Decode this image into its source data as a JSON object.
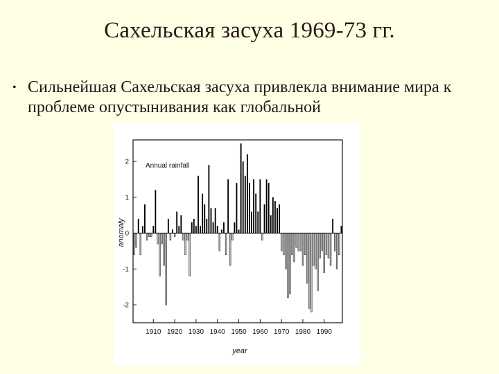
{
  "slide": {
    "title": "Сахельская засуха 1969-73 гг.",
    "bullet": "Сильнейшая Сахельская засуха привлекла внимание мира к проблеме опустынивания как глобальной"
  },
  "colors": {
    "background": "#FFFFE5",
    "positive_bar": "#000000",
    "negative_bar": "#bdbdbd"
  },
  "chart_data": {
    "type": "bar",
    "title": "",
    "annotation": "Annual rainfall",
    "xlabel": "year",
    "ylabel": "anomaly",
    "xlim": [
      1901,
      1998
    ],
    "ylim": [
      -2.5,
      2.6
    ],
    "x_ticks": [
      1910,
      1920,
      1930,
      1940,
      1950,
      1960,
      1970,
      1980,
      1990
    ],
    "y_ticks": [
      -2,
      -1,
      0,
      1,
      2
    ],
    "grid": false,
    "x": [
      1901,
      1902,
      1903,
      1904,
      1905,
      1906,
      1907,
      1908,
      1909,
      1910,
      1911,
      1912,
      1913,
      1914,
      1915,
      1916,
      1917,
      1918,
      1919,
      1920,
      1921,
      1922,
      1923,
      1924,
      1925,
      1926,
      1927,
      1928,
      1929,
      1930,
      1931,
      1932,
      1933,
      1934,
      1935,
      1936,
      1937,
      1938,
      1939,
      1940,
      1941,
      1942,
      1943,
      1944,
      1945,
      1946,
      1947,
      1948,
      1949,
      1950,
      1951,
      1952,
      1953,
      1954,
      1955,
      1956,
      1957,
      1958,
      1959,
      1960,
      1961,
      1962,
      1963,
      1964,
      1965,
      1966,
      1967,
      1968,
      1969,
      1970,
      1971,
      1972,
      1973,
      1974,
      1975,
      1976,
      1977,
      1978,
      1979,
      1980,
      1981,
      1982,
      1983,
      1984,
      1985,
      1986,
      1987,
      1988,
      1989,
      1990,
      1991,
      1992,
      1993,
      1994,
      1995,
      1996,
      1997,
      1998
    ],
    "values": [
      -0.6,
      -0.4,
      0.4,
      -0.6,
      0.2,
      0.8,
      -0.2,
      -0.1,
      -0.1,
      0.2,
      1.2,
      -0.3,
      -1.2,
      -0.3,
      -0.9,
      -2.0,
      0.4,
      -0.2,
      0.1,
      -0.1,
      0.6,
      0.2,
      0.5,
      -0.2,
      -0.6,
      -0.2,
      -1.2,
      0.3,
      0.4,
      0.2,
      1.6,
      0.2,
      1.1,
      0.8,
      0.4,
      1.9,
      0.7,
      0.3,
      0.7,
      0.2,
      -0.5,
      0.1,
      0.3,
      -0.6,
      1.5,
      -0.9,
      -0.2,
      0.3,
      1.4,
      0.1,
      2.5,
      2.0,
      1.6,
      2.2,
      1.4,
      0.6,
      1.5,
      1.1,
      0.6,
      1.5,
      -0.2,
      0.8,
      1.5,
      1.4,
      0.5,
      1.0,
      0.9,
      0.7,
      0.8,
      -0.5,
      -0.6,
      -1.0,
      -1.8,
      -1.7,
      -0.6,
      -0.8,
      -0.4,
      -0.5,
      -0.5,
      -0.9,
      -0.6,
      -1.4,
      -2.1,
      -2.2,
      -0.9,
      -1.0,
      -1.6,
      -0.7,
      -0.5,
      -1.1,
      -0.6,
      -0.7,
      -0.9,
      0.4,
      -0.5,
      -1.0,
      -0.6,
      0.2
    ]
  }
}
